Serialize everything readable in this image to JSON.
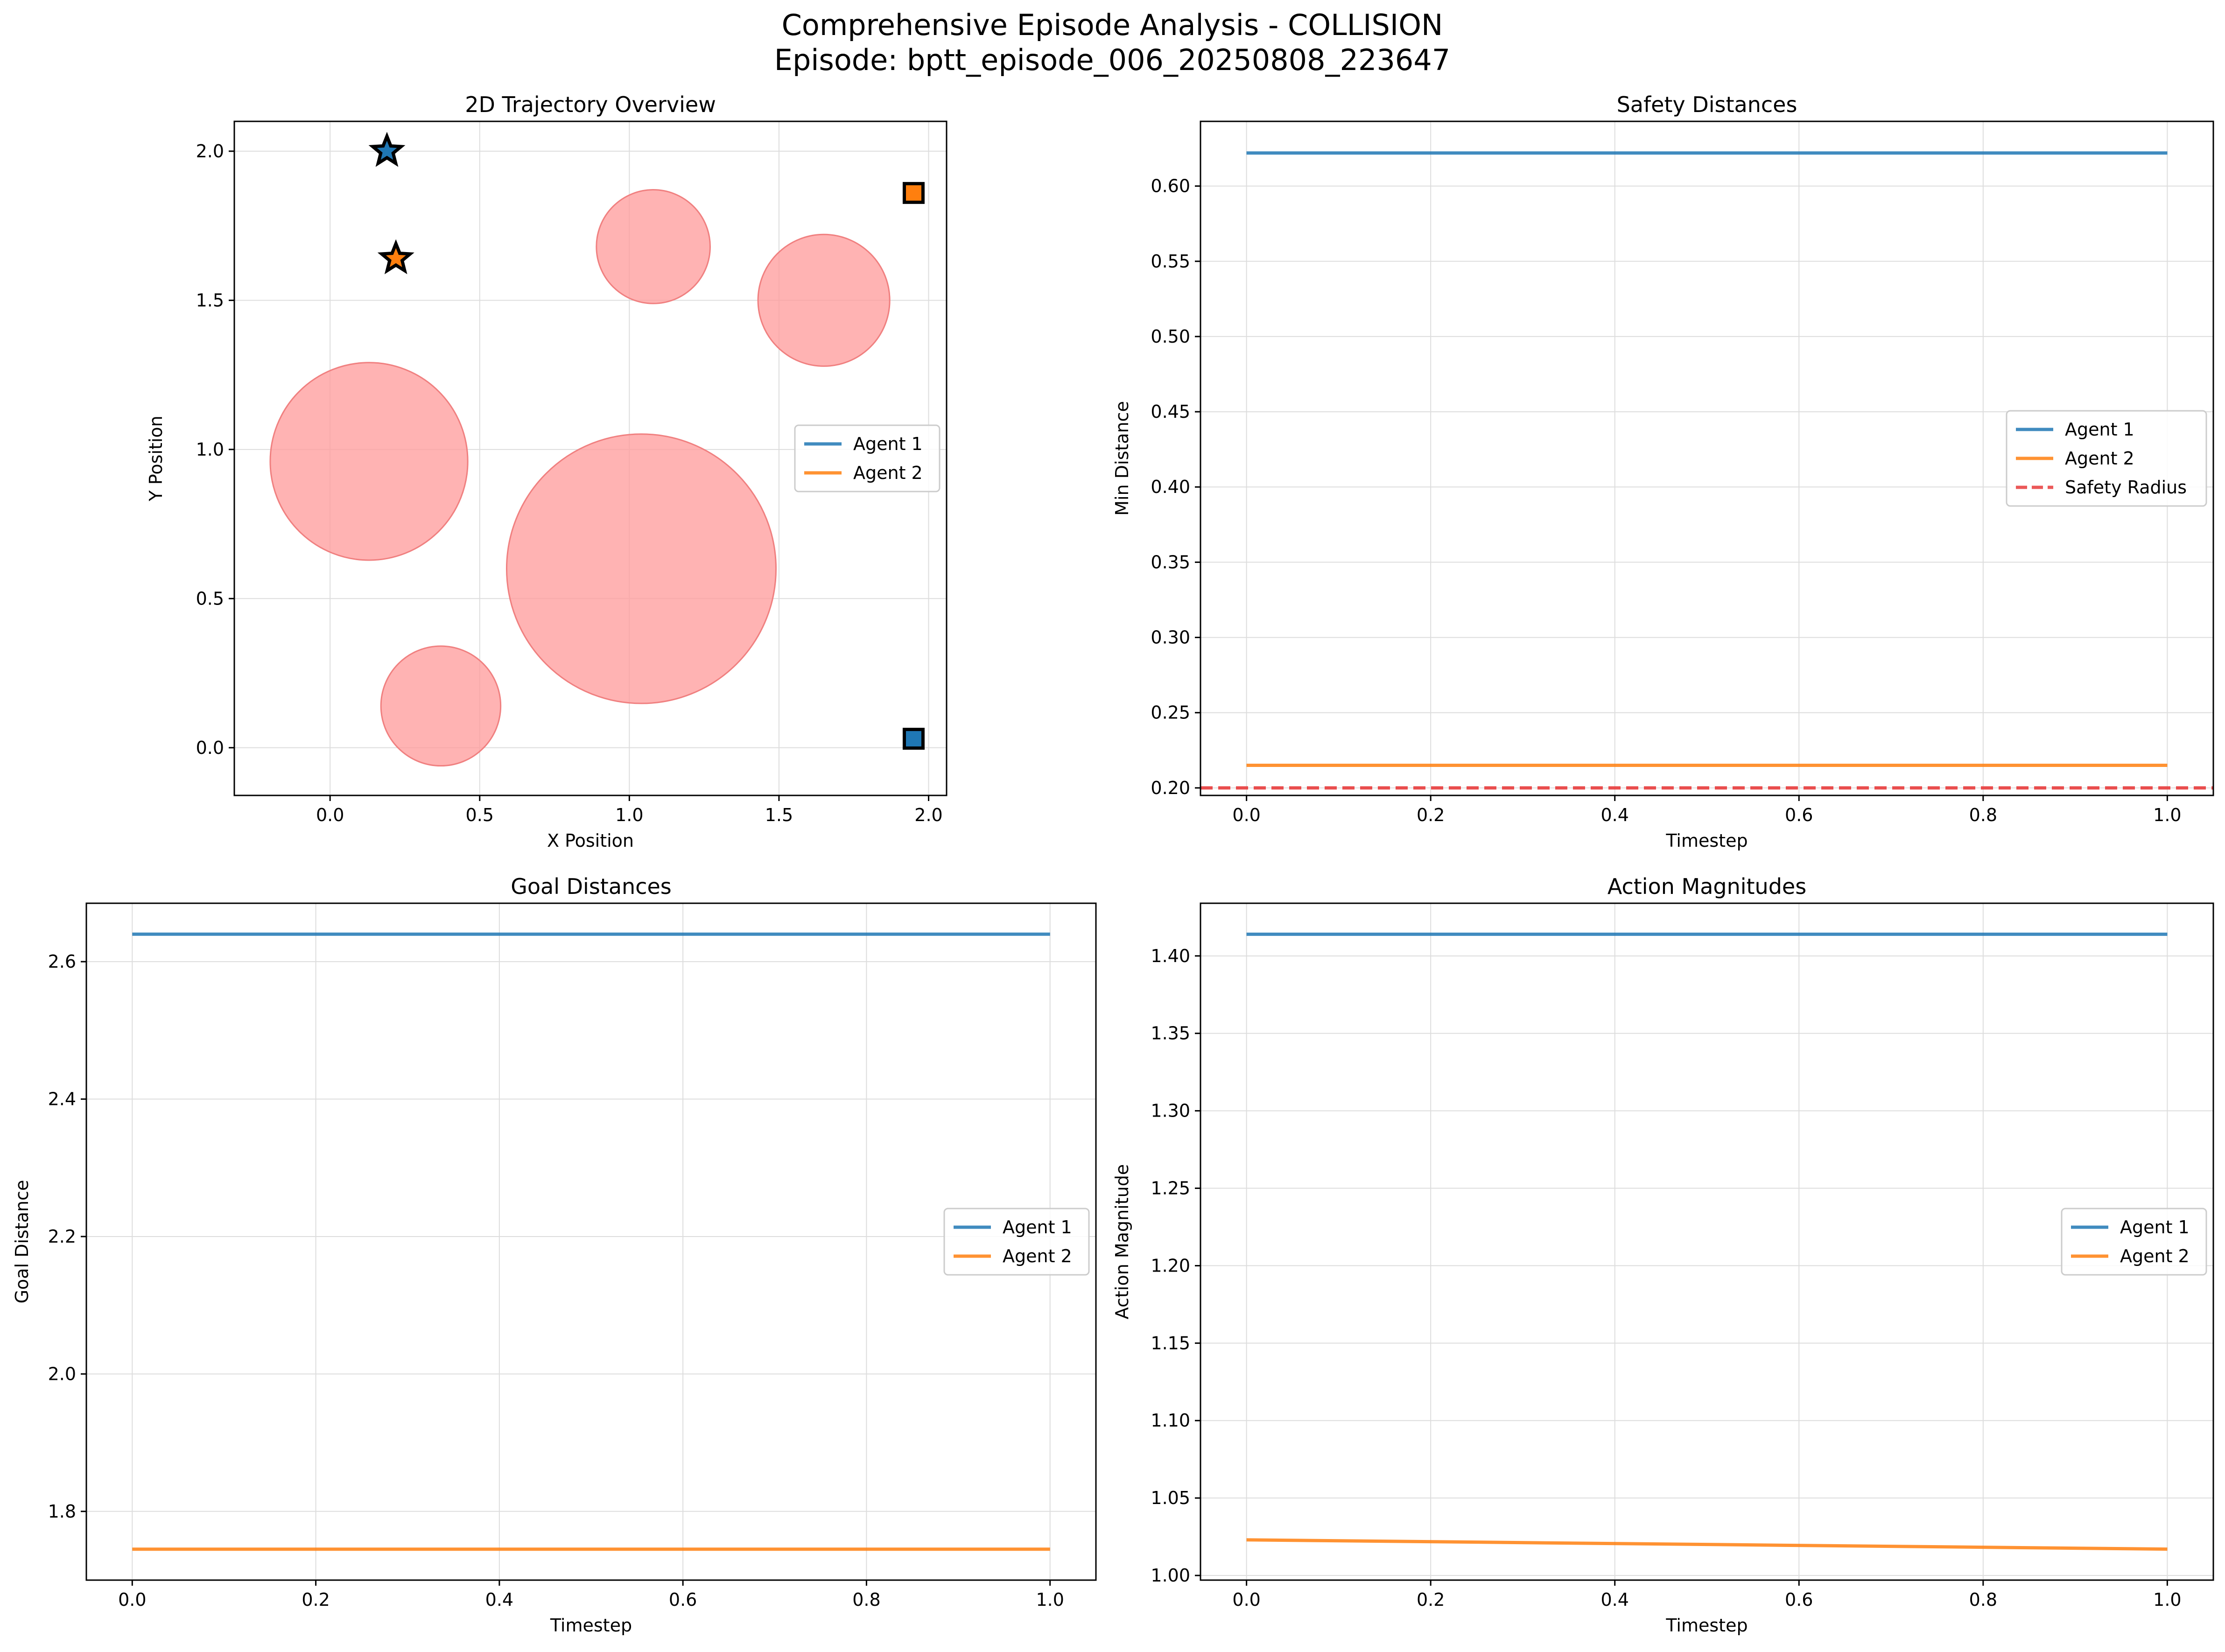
{
  "figure": {
    "title_line1": "Comprehensive Episode Analysis - COLLISION",
    "title_line2": "Episode: bptt_episode_006_20250808_223647"
  },
  "colors": {
    "agent1": "#1f77b4",
    "agent2": "#ff7f0e",
    "safety": "#e83b3b",
    "obstacle": "#ff9999",
    "grid": "#dddddd"
  },
  "chart_data": [
    {
      "id": "trajectory",
      "type": "scatter",
      "title": "2D Trajectory Overview",
      "xlabel": "X Position",
      "ylabel": "Y Position",
      "xlim": [
        -0.32,
        2.06
      ],
      "ylim": [
        -0.16,
        2.1
      ],
      "xticks": [
        0.0,
        0.5,
        1.0,
        1.5,
        2.0
      ],
      "yticks": [
        0.0,
        0.5,
        1.0,
        1.5,
        2.0
      ],
      "grid": true,
      "legend": {
        "placement": "center-right",
        "entries": [
          "Agent 1",
          "Agent 2"
        ]
      },
      "obstacles": [
        {
          "x": 0.13,
          "y": 0.96,
          "r": 0.33
        },
        {
          "x": 1.04,
          "y": 0.6,
          "r": 0.45
        },
        {
          "x": 0.37,
          "y": 0.14,
          "r": 0.2
        },
        {
          "x": 1.08,
          "y": 1.68,
          "r": 0.19
        },
        {
          "x": 1.65,
          "y": 1.5,
          "r": 0.22
        }
      ],
      "series": [
        {
          "name": "Agent 1",
          "color_key": "agent1",
          "start": {
            "x": 1.95,
            "y": 0.03
          },
          "goal": {
            "x": 0.19,
            "y": 2.0
          }
        },
        {
          "name": "Agent 2",
          "color_key": "agent2",
          "start": {
            "x": 1.95,
            "y": 1.86
          },
          "goal": {
            "x": 0.22,
            "y": 1.64
          }
        }
      ]
    },
    {
      "id": "safety",
      "type": "line",
      "title": "Safety Distances",
      "xlabel": "Timestep",
      "ylabel": "Min Distance",
      "xlim": [
        -0.05,
        1.05
      ],
      "ylim": [
        0.195,
        0.643
      ],
      "xticks": [
        0.0,
        0.2,
        0.4,
        0.6,
        0.8,
        1.0
      ],
      "yticks": [
        0.2,
        0.25,
        0.3,
        0.35,
        0.4,
        0.45,
        0.5,
        0.55,
        0.6
      ],
      "grid": true,
      "legend": {
        "placement": "center-right",
        "entries": [
          "Agent 1",
          "Agent 2",
          "Safety Radius"
        ]
      },
      "series": [
        {
          "name": "Agent 1",
          "color_key": "agent1",
          "x": [
            0,
            1
          ],
          "y": [
            0.622,
            0.622
          ]
        },
        {
          "name": "Agent 2",
          "color_key": "agent2",
          "x": [
            0,
            1
          ],
          "y": [
            0.215,
            0.215
          ]
        }
      ],
      "hline": {
        "name": "Safety Radius",
        "color_key": "safety",
        "y": 0.2
      }
    },
    {
      "id": "goal",
      "type": "line",
      "title": "Goal Distances",
      "xlabel": "Timestep",
      "ylabel": "Goal Distance",
      "xlim": [
        -0.05,
        1.05
      ],
      "ylim": [
        1.7,
        2.685
      ],
      "xticks": [
        0.0,
        0.2,
        0.4,
        0.6,
        0.8,
        1.0
      ],
      "yticks": [
        1.8,
        2.0,
        2.2,
        2.4,
        2.6
      ],
      "grid": true,
      "legend": {
        "placement": "center-right",
        "entries": [
          "Agent 1",
          "Agent 2"
        ]
      },
      "series": [
        {
          "name": "Agent 1",
          "color_key": "agent1",
          "x": [
            0,
            1
          ],
          "y": [
            2.64,
            2.64
          ]
        },
        {
          "name": "Agent 2",
          "color_key": "agent2",
          "x": [
            0,
            1
          ],
          "y": [
            1.745,
            1.745
          ]
        }
      ]
    },
    {
      "id": "action",
      "type": "line",
      "title": "Action Magnitudes",
      "xlabel": "Timestep",
      "ylabel": "Action Magnitude",
      "xlim": [
        -0.05,
        1.05
      ],
      "ylim": [
        0.997,
        1.434
      ],
      "xticks": [
        0.0,
        0.2,
        0.4,
        0.6,
        0.8,
        1.0
      ],
      "yticks": [
        1.0,
        1.05,
        1.1,
        1.15,
        1.2,
        1.25,
        1.3,
        1.35,
        1.4
      ],
      "grid": true,
      "legend": {
        "placement": "center-right",
        "entries": [
          "Agent 1",
          "Agent 2"
        ]
      },
      "series": [
        {
          "name": "Agent 1",
          "color_key": "agent1",
          "x": [
            0,
            1
          ],
          "y": [
            1.414,
            1.414
          ]
        },
        {
          "name": "Agent 2",
          "color_key": "agent2",
          "x": [
            0,
            1
          ],
          "y": [
            1.023,
            1.017
          ]
        }
      ]
    }
  ]
}
